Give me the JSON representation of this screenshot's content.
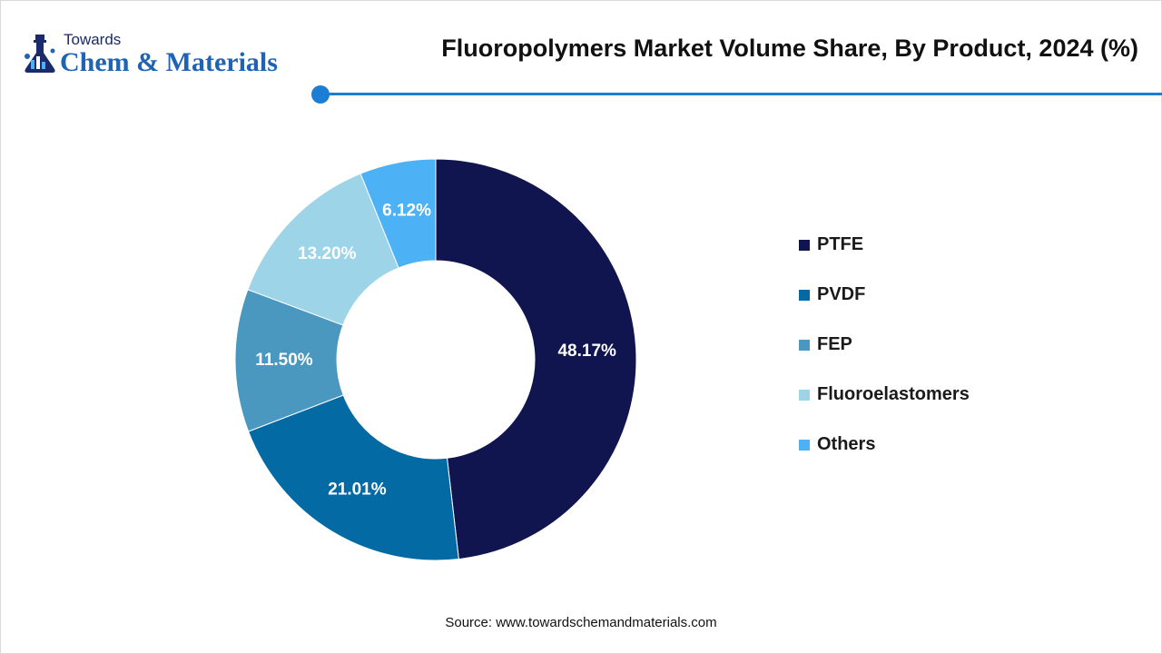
{
  "brand": {
    "top": "Towards",
    "main": "Chem & Materials"
  },
  "title": "Fluoropolymers Market Volume Share, By Product, 2024 (%)",
  "source": "Source: www.towardschemandmaterials.com",
  "colors": {
    "accent": "#1a7fd4",
    "brand_text": "#1f63b5"
  },
  "chart_data": {
    "type": "pie",
    "style": "donut",
    "title": "Fluoropolymers Market Volume Share, By Product, 2024 (%)",
    "legend_position": "right",
    "categories": [
      "PTFE",
      "PVDF",
      "FEP",
      "Fluoroelastomers",
      "Others"
    ],
    "values": [
      48.17,
      21.01,
      11.5,
      13.2,
      6.12
    ],
    "labels": [
      "48.17%",
      "21.01%",
      "11.50%",
      "13.20%",
      "6.12%"
    ],
    "colors": [
      "#11154f",
      "#046aa4",
      "#4a98c0",
      "#9dd4e8",
      "#4cb2f5"
    ]
  }
}
